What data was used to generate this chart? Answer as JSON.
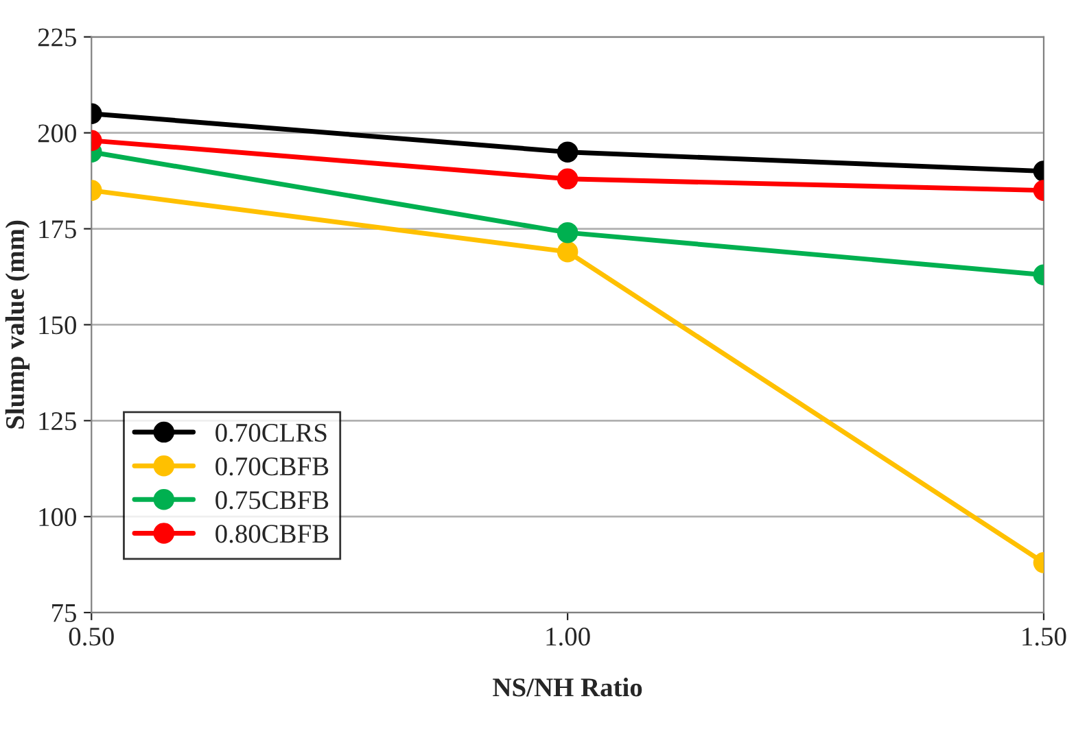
{
  "chart_data": {
    "type": "line",
    "xlabel": "NS/NH Ratio",
    "ylabel": "Slump value (mm)",
    "x": [
      0.5,
      1.0,
      1.5
    ],
    "series": [
      {
        "name": "0.70CLRS",
        "color": "#000000",
        "values": [
          205,
          195,
          190
        ]
      },
      {
        "name": "0.70CBFB",
        "color": "#ffc000",
        "values": [
          185,
          169,
          88
        ]
      },
      {
        "name": "0.75CBFB",
        "color": "#00b050",
        "values": [
          195,
          174,
          163
        ]
      },
      {
        "name": "0.80CBFB",
        "color": "#ff0000",
        "values": [
          198,
          188,
          185
        ]
      }
    ],
    "xlim": [
      0.5,
      1.5
    ],
    "xticks": [
      {
        "value": 0.5,
        "label": "0.50"
      },
      {
        "value": 1.0,
        "label": "1.00"
      },
      {
        "value": 1.5,
        "label": "1.50"
      }
    ],
    "ylim": [
      75,
      225
    ],
    "yticks": [
      75,
      100,
      125,
      150,
      175,
      200,
      225
    ],
    "grid": "y",
    "legend": "lower left",
    "marker": "circle",
    "line_style": "solid"
  }
}
